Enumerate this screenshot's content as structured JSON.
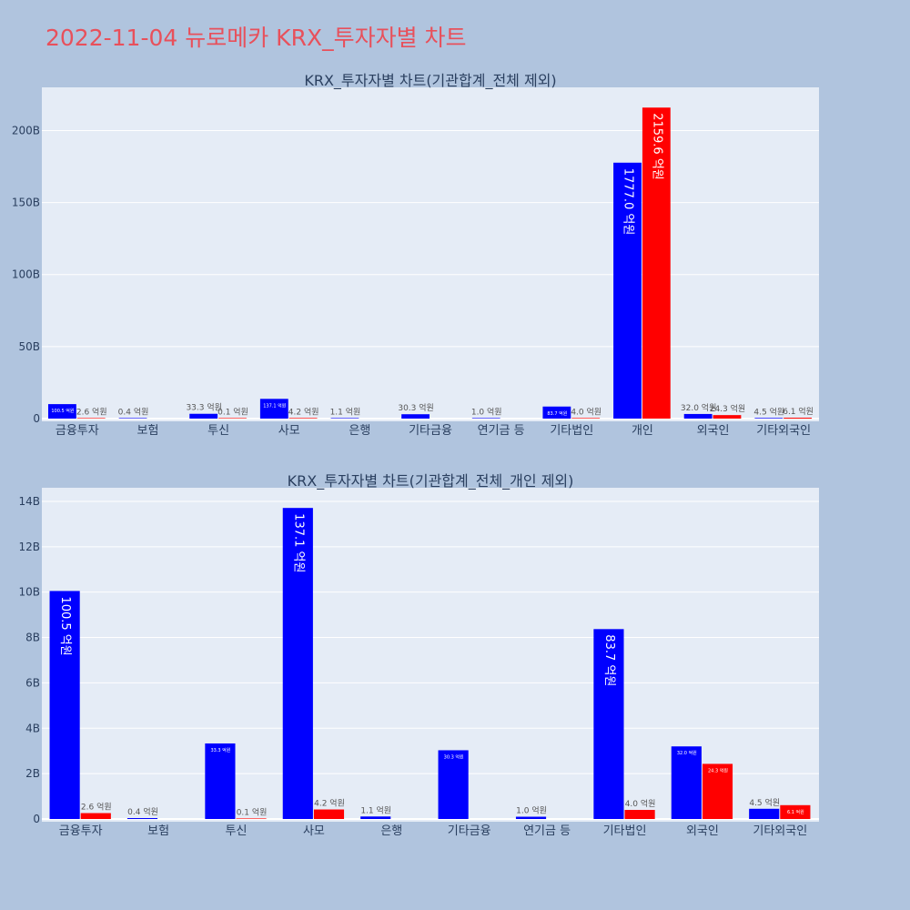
{
  "title": "2022-11-04 뉴로메카 KRX_투자자별 차트",
  "chart_data": [
    {
      "type": "bar",
      "title": "KRX_투자자별 차트(기관합계_전체 제외)",
      "categories": [
        "금융투자",
        "보험",
        "투신",
        "사모",
        "은행",
        "기타금융",
        "연기금 등",
        "기타법인",
        "개인",
        "외국인",
        "기타외국인"
      ],
      "y_ticks": [
        "0",
        "50B",
        "100B",
        "150B",
        "200B"
      ],
      "ylim": [
        0,
        230
      ],
      "y_unit": "B",
      "grid": true,
      "series": [
        {
          "color": "#0000ff",
          "values": [
            10.05,
            0.04,
            3.33,
            13.71,
            0.11,
            3.03,
            0.1,
            8.37,
            177.7,
            3.2,
            0.45
          ],
          "labels": [
            "100.5 억원",
            "0.4 억원",
            "33.3 억원",
            "137.1 억원",
            "1.1 억원",
            "30.3 억원",
            "1.0 억원",
            "83.7 억원",
            "1777.0 억원",
            "32.0 억원",
            "4.5 억원"
          ]
        },
        {
          "color": "#ff0000",
          "values": [
            0.26,
            0,
            0.01,
            0.42,
            0,
            0,
            0,
            0.4,
            215.96,
            2.43,
            0.61
          ],
          "labels": [
            "2.6 억원",
            "",
            "0.1 억원",
            "4.2 억원",
            "",
            "",
            "",
            "4.0 억원",
            "2159.6 억원",
            "24.3 억원",
            "6.1 억원"
          ]
        }
      ]
    },
    {
      "type": "bar",
      "title": "KRX_투자자별 차트(기관합계_전체_개인 제외)",
      "categories": [
        "금융투자",
        "보험",
        "투신",
        "사모",
        "은행",
        "기타금융",
        "연기금 등",
        "기타법인",
        "외국인",
        "기타외국인"
      ],
      "y_ticks": [
        "0",
        "2B",
        "4B",
        "6B",
        "8B",
        "10B",
        "12B",
        "14B"
      ],
      "ylim": [
        0,
        14.6
      ],
      "y_unit": "B",
      "grid": true,
      "series": [
        {
          "color": "#0000ff",
          "values": [
            10.05,
            0.04,
            3.33,
            13.71,
            0.11,
            3.03,
            0.1,
            8.37,
            3.2,
            0.45
          ],
          "labels": [
            "100.5 억원",
            "0.4 억원",
            "33.3 억원",
            "137.1 억원",
            "1.1 억원",
            "30.3 억원",
            "1.0 억원",
            "83.7 억원",
            "32.0 억원",
            "4.5 억원"
          ]
        },
        {
          "color": "#ff0000",
          "values": [
            0.26,
            0,
            0.01,
            0.42,
            0,
            0,
            0,
            0.4,
            2.43,
            0.61
          ],
          "labels": [
            "2.6 억원",
            "",
            "0.1 억원",
            "4.2 억원",
            "",
            "",
            "",
            "4.0 억원",
            "24.3 억원",
            "6.1 억원"
          ]
        }
      ]
    }
  ]
}
